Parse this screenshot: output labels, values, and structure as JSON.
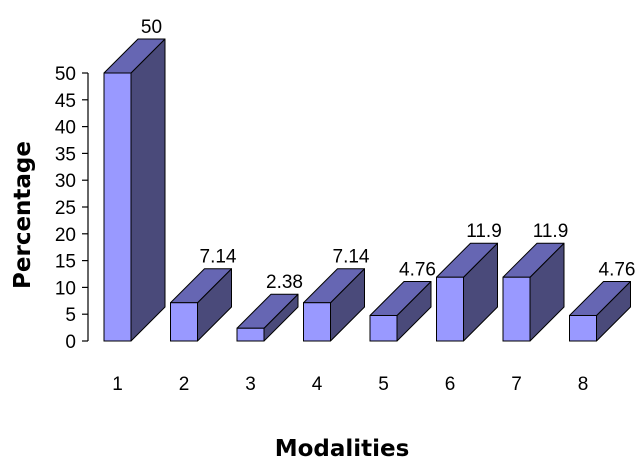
{
  "chart_data": {
    "type": "bar",
    "style": "3d",
    "categories": [
      "1",
      "2",
      "3",
      "4",
      "5",
      "6",
      "7",
      "8"
    ],
    "values": [
      50,
      7.14,
      2.38,
      7.14,
      4.76,
      11.9,
      11.9,
      4.76
    ],
    "data_labels": [
      "50",
      "7.14",
      "2.38",
      "7.14",
      "4.76",
      "11.9",
      "11.9",
      "4.76"
    ],
    "xlabel": "Modalities",
    "ylabel": "Percentage",
    "ylim": [
      0,
      50
    ],
    "yticks": [
      "0",
      "5",
      "10",
      "15",
      "20",
      "25",
      "30",
      "35",
      "40",
      "45",
      "50"
    ],
    "grid": false,
    "colors": {
      "front": "#9999ff",
      "side": "#4a4a7a",
      "top": "#6666b3",
      "edge": "#000000"
    }
  }
}
